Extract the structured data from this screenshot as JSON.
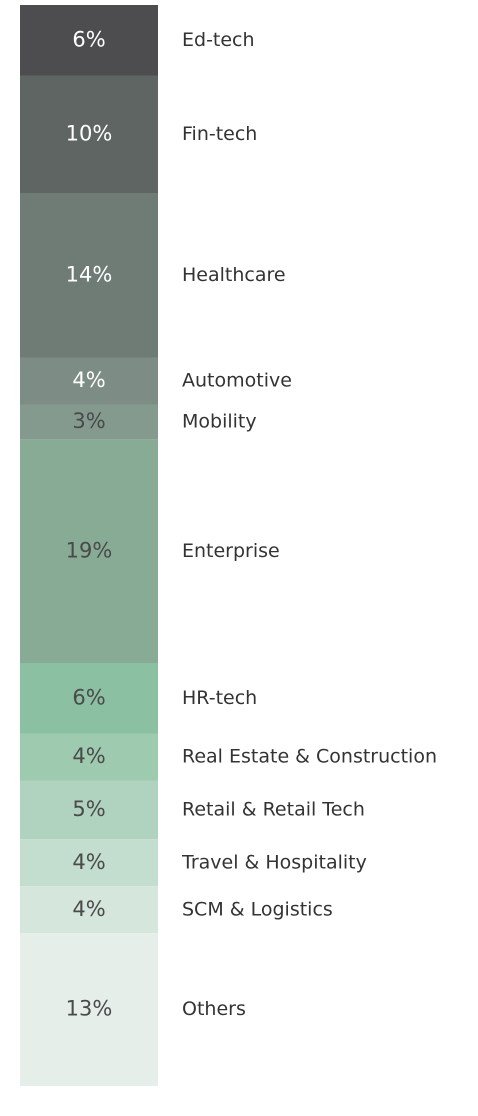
{
  "chart_data": {
    "type": "stacked-column",
    "series": [
      {
        "name": "Ed-tech",
        "color": "#4d4d4f",
        "values": [
          6
        ],
        "value_labels": [
          "6%"
        ]
      },
      {
        "name": "Fin-tech",
        "color": "#5f6563",
        "values": [
          10
        ],
        "value_labels": [
          "10%"
        ]
      },
      {
        "name": "Healthcare",
        "color": "#6f7b75",
        "values": [
          14
        ],
        "value_labels": [
          "14%"
        ]
      },
      {
        "name": "Automotive",
        "color": "#7d8d85",
        "values": [
          4
        ],
        "value_labels": [
          "4%"
        ]
      },
      {
        "name": "Mobility",
        "color": "#849a8e",
        "values": [
          3
        ],
        "value_labels": [
          "3%"
        ]
      },
      {
        "name": "Enterprise",
        "color": "#88ab96",
        "values": [
          19
        ],
        "value_labels": [
          "19%"
        ]
      },
      {
        "name": "HR-tech",
        "color": "#8cc0a2",
        "values": [
          6
        ],
        "value_labels": [
          "6%"
        ]
      },
      {
        "name": "Real Estate & Construction",
        "color": "#9ecbb0",
        "values": [
          4
        ],
        "value_labels": [
          "4%"
        ]
      },
      {
        "name": "Retail & Retail Tech",
        "color": "#b0d3bf",
        "values": [
          5
        ],
        "value_labels": [
          "5%"
        ]
      },
      {
        "name": "Travel & Hospitality",
        "color": "#c3ddce",
        "values": [
          4
        ],
        "value_labels": [
          "4%"
        ]
      },
      {
        "name": "SCM & Logistics",
        "color": "#d5e7dc",
        "values": [
          4
        ],
        "value_labels": [
          "4%"
        ]
      },
      {
        "name": "Others",
        "color": "#e6eee9",
        "values": [
          13
        ],
        "value_labels": [
          "13%"
        ]
      }
    ]
  }
}
